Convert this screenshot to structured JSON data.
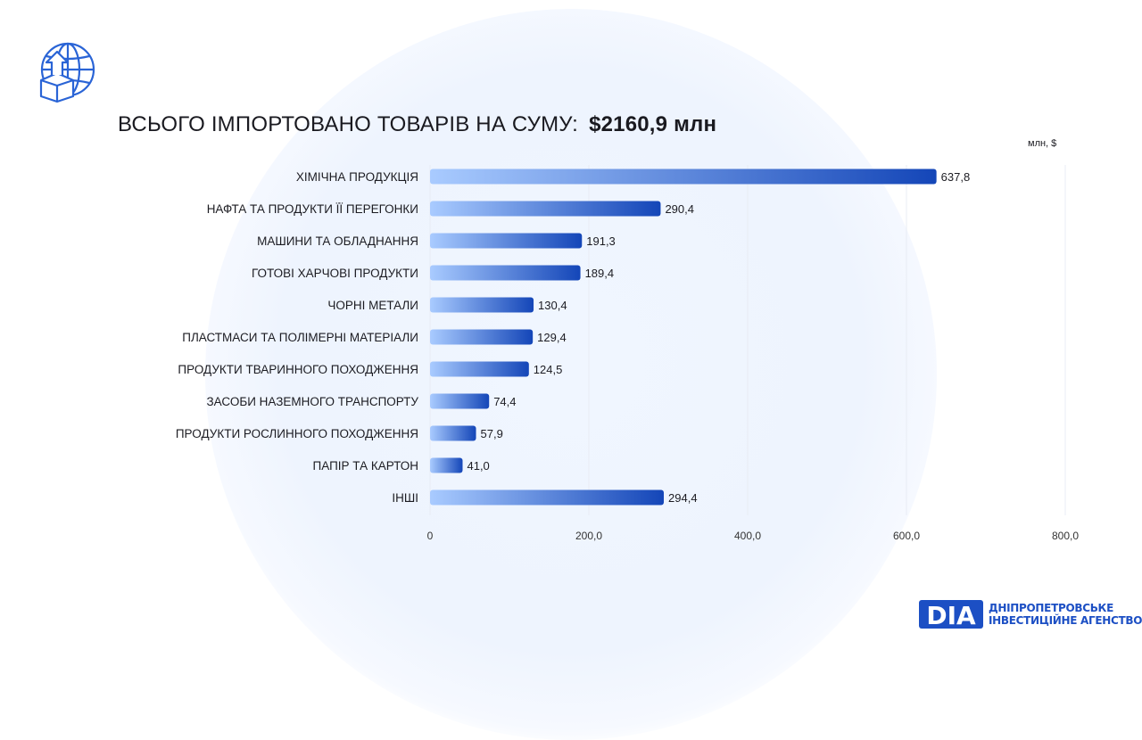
{
  "header": {
    "title": "ВСЬОГО ІМПОРТОВАНО ТОВАРІВ НА СУМУ:",
    "total": "$2160,9 млн"
  },
  "unit_label": "млн, $",
  "brand": {
    "mark": "DIA",
    "line1": "ДНІПРОПЕТРОВСЬКЕ",
    "line2": "ІНВЕСТИЦІЙНЕ АГЕНСТВО"
  },
  "colors": {
    "bar_start": "#a9cbff",
    "bar_end": "#1446b8",
    "brand": "#1c4fc4",
    "grid": "#e8ecf4"
  },
  "icons": [
    "globe-box-import-icon"
  ],
  "chart_data": {
    "type": "bar",
    "orientation": "horizontal",
    "categories": [
      "ХІМІЧНА ПРОДУКЦІЯ",
      "НАФТА ТА ПРОДУКТИ ЇЇ ПЕРЕГОНКИ",
      "МАШИНИ ТА ОБЛАДНАННЯ",
      "ГОТОВІ ХАРЧОВІ ПРОДУКТИ",
      "ЧОРНІ МЕТАЛИ",
      "ПЛАСТМАСИ ТА ПОЛІМЕРНІ МАТЕРІАЛИ",
      "ПРОДУКТИ ТВАРИННОГО ПОХОДЖЕННЯ",
      "ЗАСОБИ НАЗЕМНОГО ТРАНСПОРТУ",
      "ПРОДУКТИ РОСЛИННОГО ПОХОДЖЕННЯ",
      "ПАПІР ТА КАРТОН",
      "ІНШІ"
    ],
    "values": [
      637.8,
      290.4,
      191.3,
      189.4,
      130.4,
      129.4,
      124.5,
      74.4,
      57.9,
      41.0,
      294.4
    ],
    "value_labels": [
      "637,8",
      "290,4",
      "191,3",
      "189,4",
      "130,4",
      "129,4",
      "124,5",
      "74,4",
      "57,9",
      "41,0",
      "294,4"
    ],
    "xlim": [
      0,
      800
    ],
    "ticks": [
      0,
      200,
      400,
      600,
      800
    ],
    "tick_labels": [
      "0",
      "200,0",
      "400,0",
      "600,0",
      "800,0"
    ],
    "grid": true,
    "legend": "none"
  }
}
